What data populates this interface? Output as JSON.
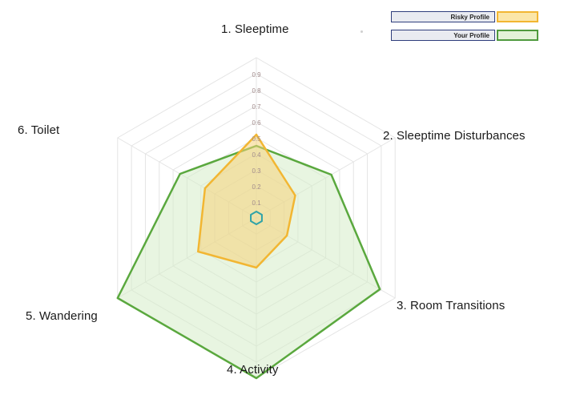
{
  "chart_data": {
    "type": "radar",
    "axes": [
      "1. Sleeptime",
      "2. Sleeptime Disturbances",
      "3. Room Transitions",
      "4. Activity",
      "5. Wandering",
      "6. Toilet"
    ],
    "tick_labels": [
      "0.1",
      "0.2",
      "0.3",
      "0.4",
      "0.5",
      "0.6",
      "0.7",
      "0.8",
      "0.9"
    ],
    "range": [
      0,
      1
    ],
    "grid": true,
    "legend_position": "top-right",
    "series": [
      {
        "name": "Risky Profile",
        "values": [
          0.52,
          0.28,
          0.22,
          0.31,
          0.42,
          0.37
        ],
        "color": "#f2b632",
        "fill": "#f5d27a"
      },
      {
        "name": "Your Profile",
        "values": [
          0.45,
          0.54,
          0.89,
          1.0,
          1.0,
          0.55
        ],
        "color": "#5aa83e",
        "fill": "#d6ecc8"
      },
      {
        "name": "",
        "values": [
          0.04,
          0.04,
          0.04,
          0.04,
          0.04,
          0.04
        ],
        "color": "#2fa3a8",
        "fill": "none"
      }
    ]
  }
}
